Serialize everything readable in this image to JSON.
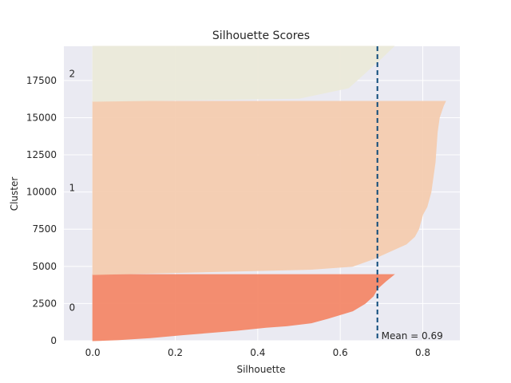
{
  "chart_data": {
    "type": "area",
    "title": "Silhouette Scores",
    "xlabel": "Silhouette",
    "ylabel": "Cluster",
    "xlim": [
      -0.07,
      0.89
    ],
    "ylim": [
      0,
      19800
    ],
    "xticks": [
      0.0,
      0.2,
      0.4,
      0.6,
      0.8
    ],
    "xtick_labels": [
      "0.0",
      "0.2",
      "0.4",
      "0.6",
      "0.8"
    ],
    "yticks": [
      0,
      2500,
      5000,
      7500,
      10000,
      12500,
      15000,
      17500
    ],
    "ytick_labels": [
      "0",
      "2500",
      "5000",
      "7500",
      "10000",
      "12500",
      "15000",
      "17500"
    ],
    "grid": true,
    "background": "#eaeaf2",
    "mean_line": {
      "value": 0.69,
      "label": "Mean = 0.69",
      "color": "#0d4a7a",
      "style": "dashed"
    },
    "clusters": [
      {
        "label": "0",
        "color": "#f4896a",
        "y_start": 0,
        "y_end": 4450,
        "profile": [
          [
            0,
            0.0
          ],
          [
            60,
            0.06
          ],
          [
            200,
            0.14
          ],
          [
            400,
            0.22
          ],
          [
            700,
            0.35
          ],
          [
            900,
            0.42
          ],
          [
            1000,
            0.47
          ],
          [
            1200,
            0.53
          ],
          [
            1500,
            0.57
          ],
          [
            2000,
            0.63
          ],
          [
            2500,
            0.66
          ],
          [
            3000,
            0.68
          ],
          [
            3500,
            0.69
          ],
          [
            4000,
            0.71
          ],
          [
            4450,
            0.73
          ]
        ]
      },
      {
        "label": "1",
        "color": "#f5cdb0",
        "y_start": 4450,
        "y_end": 16100,
        "profile": [
          [
            4450,
            0.0
          ],
          [
            4800,
            0.53
          ],
          [
            5000,
            0.63
          ],
          [
            5500,
            0.68
          ],
          [
            6000,
            0.72
          ],
          [
            6500,
            0.76
          ],
          [
            7000,
            0.78
          ],
          [
            7500,
            0.79
          ],
          [
            8500,
            0.8
          ],
          [
            9000,
            0.81
          ],
          [
            10000,
            0.82
          ],
          [
            12000,
            0.83
          ],
          [
            14000,
            0.835
          ],
          [
            15000,
            0.84
          ],
          [
            15800,
            0.85
          ],
          [
            16100,
            0.855
          ]
        ]
      },
      {
        "label": "2",
        "color": "#eceada",
        "y_start": 16100,
        "y_end": 19800,
        "profile": [
          [
            16100,
            0.0
          ],
          [
            16300,
            0.5
          ],
          [
            17000,
            0.62
          ],
          [
            18000,
            0.66
          ],
          [
            19000,
            0.7
          ],
          [
            19800,
            0.73
          ]
        ]
      }
    ]
  }
}
